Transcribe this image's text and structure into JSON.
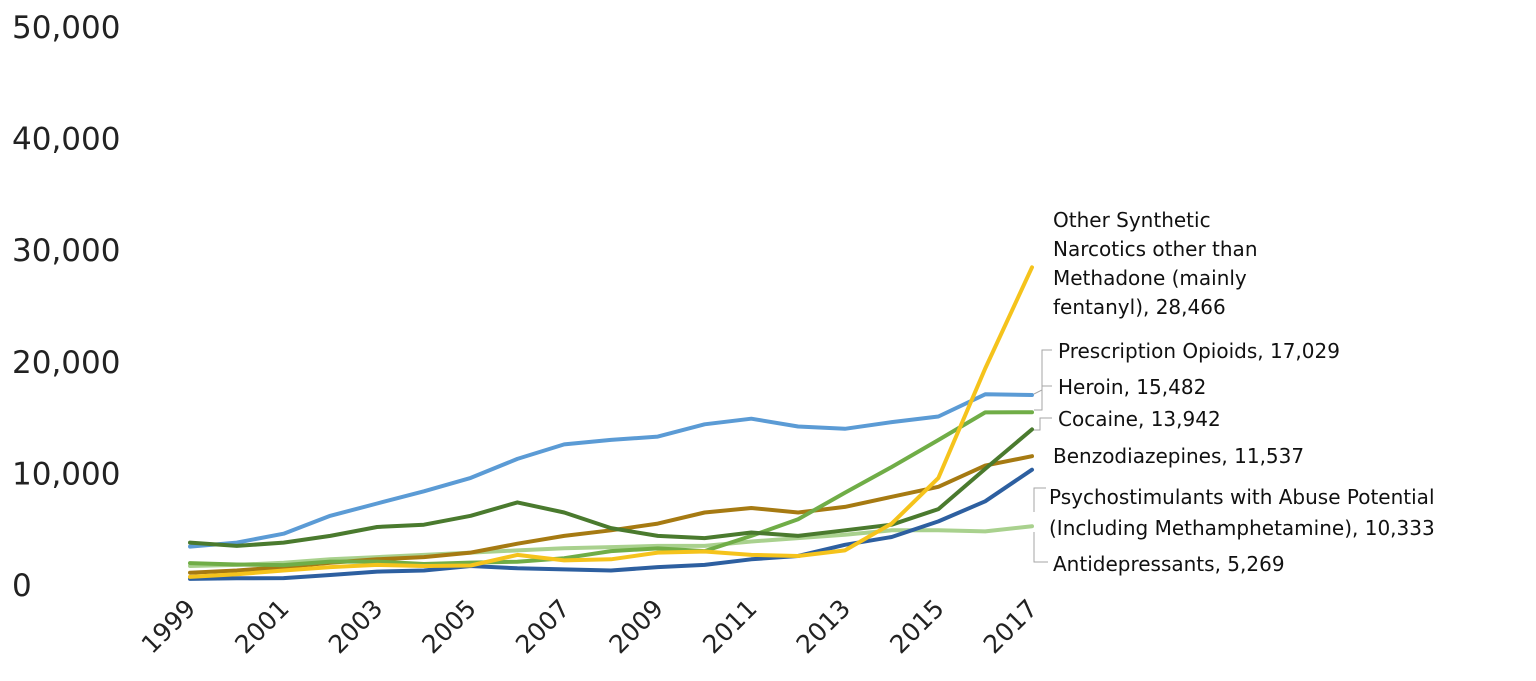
{
  "chart_data": {
    "type": "line",
    "title": "",
    "xlabel": "",
    "ylabel": "",
    "ylim": [
      0,
      50000
    ],
    "grid": false,
    "legend": "none",
    "yticks": [
      "0",
      "10,000",
      "20,000",
      "30,000",
      "40,000",
      "50,000"
    ],
    "xticks": [
      "1999",
      "2001",
      "2003",
      "2005",
      "2007",
      "2009",
      "2011",
      "2013",
      "2015",
      "2017"
    ],
    "x": [
      1999,
      2000,
      2001,
      2002,
      2003,
      2004,
      2005,
      2006,
      2007,
      2008,
      2009,
      2010,
      2011,
      2012,
      2013,
      2014,
      2015,
      2016,
      2017
    ],
    "series": [
      {
        "key": "prescription",
        "color": "#5b9bd5",
        "label_lines": [
          "Prescription Opioids, 17,029"
        ],
        "values": [
          3442,
          3800,
          4600,
          6200,
          7300,
          8400,
          9600,
          11300,
          12600,
          13000,
          13300,
          14400,
          14900,
          14200,
          14000,
          14600,
          15100,
          17087,
          17029
        ]
      },
      {
        "key": "synthetic",
        "color": "#f5c31c",
        "label_lines": [
          "Other Synthetic",
          "Narcotics other than",
          "Methadone (mainly",
          "fentanyl), 28,466"
        ],
        "values": [
          730,
          960,
          1300,
          1600,
          1800,
          1700,
          1750,
          2700,
          2200,
          2300,
          2900,
          3000,
          2700,
          2600,
          3100,
          5500,
          9600,
          19400,
          28466
        ]
      },
      {
        "key": "heroin",
        "color": "#70ad47",
        "label_lines": [
          "Heroin, 15,482"
        ],
        "values": [
          1960,
          1840,
          1780,
          2100,
          2100,
          1880,
          2010,
          2090,
          2400,
          3040,
          3280,
          3040,
          4400,
          5900,
          8260,
          10570,
          12990,
          15470,
          15482
        ]
      },
      {
        "key": "cocaine",
        "color": "#4a7a2e",
        "label_lines": [
          "Cocaine, 13,942"
        ],
        "values": [
          3800,
          3500,
          3800,
          4400,
          5200,
          5400,
          6200,
          7400,
          6500,
          5100,
          4400,
          4200,
          4700,
          4400,
          4900,
          5400,
          6800,
          10400,
          13942
        ]
      },
      {
        "key": "benzo",
        "color": "#a67a12",
        "label_lines": [
          "Benzodiazepines, 11,537"
        ],
        "values": [
          1100,
          1300,
          1600,
          2000,
          2300,
          2500,
          2900,
          3700,
          4400,
          4900,
          5500,
          6500,
          6900,
          6500,
          7000,
          7900,
          8800,
          10700,
          11537
        ]
      },
      {
        "key": "psycho",
        "color": "#2d5fa0",
        "label_lines": [
          "Psychostimulants with Abuse Potential",
          "(Including Methamphetamine), 10,333"
        ],
        "values": [
          550,
          600,
          620,
          900,
          1200,
          1300,
          1700,
          1500,
          1400,
          1300,
          1600,
          1800,
          2300,
          2600,
          3600,
          4300,
          5700,
          7500,
          10333
        ]
      },
      {
        "key": "antidep",
        "color": "#a9d18e",
        "label_lines": [
          "Antidepressants, 5,269"
        ],
        "values": [
          1700,
          1800,
          2000,
          2300,
          2500,
          2700,
          2900,
          3100,
          3300,
          3400,
          3500,
          3500,
          3900,
          4200,
          4500,
          4900,
          4900,
          4800,
          5269
        ]
      }
    ]
  }
}
